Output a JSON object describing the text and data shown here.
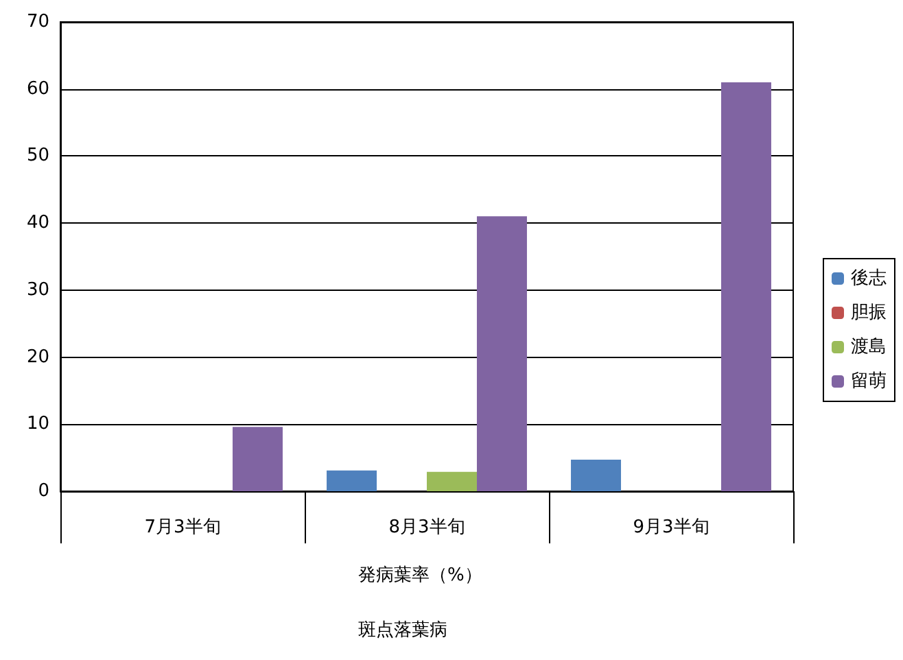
{
  "chart_data": {
    "type": "bar",
    "xlabel": "発病葉率（%）",
    "annotations": [
      "斑点落葉病"
    ],
    "categories": [
      "7月3半旬",
      "8月3半旬",
      "9月3半旬"
    ],
    "series": [
      {
        "name": "後志",
        "color": "#4f81bd",
        "values": [
          0,
          3.1,
          4.7
        ]
      },
      {
        "name": "胆振",
        "color": "#c0504d",
        "values": [
          0,
          0,
          0
        ]
      },
      {
        "name": "渡島",
        "color": "#9bbb59",
        "values": [
          0,
          2.9,
          0
        ]
      },
      {
        "name": "留萌",
        "color": "#8064a2",
        "values": [
          9.6,
          41,
          61
        ]
      }
    ],
    "ylim": [
      0,
      70
    ],
    "yticks": [
      0,
      10,
      20,
      30,
      40,
      50,
      60,
      70
    ],
    "grid": "y",
    "legend": "right"
  }
}
